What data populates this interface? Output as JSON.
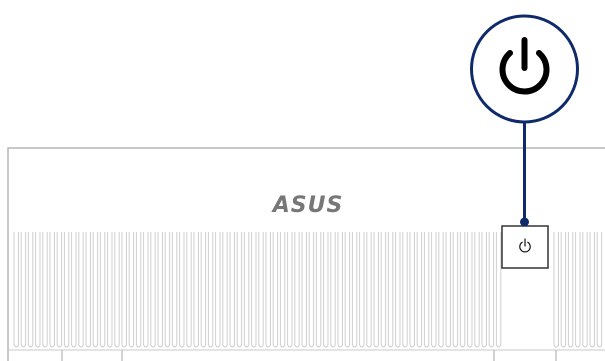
{
  "device": {
    "brand_logo": "ASUS",
    "power_button_icon": "power-icon",
    "callout_icon": "power-icon"
  },
  "colors": {
    "callout": "#0f2a6b",
    "outline": "#b5b5b5",
    "grille": "#cfcfcf",
    "icon": "#111111"
  }
}
